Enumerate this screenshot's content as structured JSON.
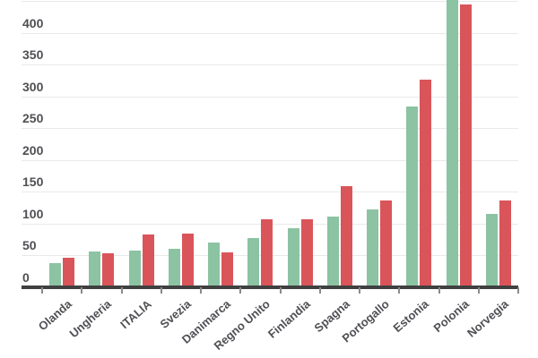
{
  "chart_data": {
    "type": "bar",
    "title": "",
    "xlabel": "",
    "ylabel": "",
    "legend": "none",
    "grid": "horizontal",
    "categories": [
      "Olanda",
      "Ungheria",
      "ITALIA",
      "Svezia",
      "Danimarca",
      "Regno Unito",
      "Finlandia",
      "Spagna",
      "Portogallo",
      "Estonia",
      "Polonia",
      "Norvegia"
    ],
    "series": [
      {
        "name": "green-series",
        "color": "#8cc3a3",
        "values": [
          38,
          56,
          58,
          60,
          71,
          77,
          93,
          111,
          123,
          284,
          455,
          116
        ]
      },
      {
        "name": "red-series",
        "color": "#d9555a",
        "values": [
          47,
          54,
          83,
          85,
          55,
          107,
          107,
          159,
          136,
          327,
          445,
          137
        ]
      }
    ],
    "ylim": [
      0,
      450
    ],
    "yticks": [
      50,
      100,
      150,
      200,
      250,
      300,
      350,
      400,
      450
    ],
    "ytick_labels_visible": [
      0,
      50,
      100,
      150,
      200,
      250,
      300,
      350,
      400
    ]
  },
  "styles": {
    "background": "#ffffff",
    "grid_color": "#e9e9ea",
    "axis_line_color": "#404040",
    "tick_color": "#8a8a8a",
    "label_color": "#4f4f54"
  }
}
